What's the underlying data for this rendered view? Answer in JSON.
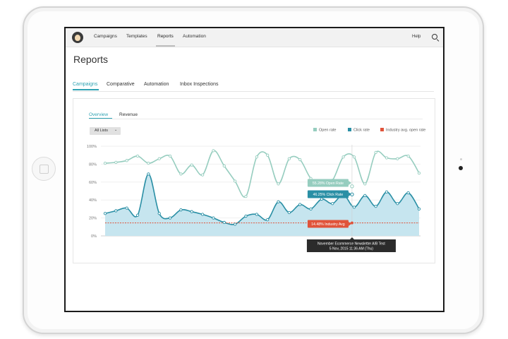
{
  "nav": {
    "items": [
      "Campaigns",
      "Templates",
      "Reports",
      "Automation"
    ],
    "active": "Reports",
    "help_label": "Help"
  },
  "page": {
    "title": "Reports"
  },
  "report_tabs": {
    "items": [
      "Campaigns",
      "Comparative",
      "Automation",
      "Inbox Inspections"
    ],
    "active": "Campaigns"
  },
  "sub_tabs": {
    "items": [
      "Overview",
      "Revenue"
    ],
    "active": "Overview"
  },
  "filter": {
    "label": "All Lists"
  },
  "legend": {
    "open_rate": "Open rate",
    "click_rate": "Click rate",
    "industry": "Industry avg. open rate"
  },
  "colors": {
    "open_rate": "#96cdbf",
    "click_rate": "#2a8fa5",
    "click_fill": "#c6e5ef",
    "industry": "#e0533a",
    "accent": "#30a3b3",
    "tooltip_bg": "#2b2b2b"
  },
  "chart_data": {
    "type": "line",
    "yticks": [
      "100%",
      "80%",
      "60%",
      "40%",
      "20%",
      "0%"
    ],
    "ylim": [
      0,
      100
    ],
    "series": [
      {
        "name": "Open rate",
        "values": [
          81,
          82,
          84,
          89,
          81,
          86,
          89,
          69,
          79,
          68,
          95,
          78,
          61,
          44,
          88,
          90,
          58,
          86,
          85,
          64,
          59,
          62,
          88,
          88,
          58,
          93,
          87,
          86,
          89,
          70
        ]
      },
      {
        "name": "Click rate",
        "values": [
          25,
          28,
          31,
          23,
          69,
          25,
          20,
          29,
          27,
          24,
          20,
          15,
          13,
          22,
          24,
          18,
          38,
          26,
          35,
          30,
          41,
          36,
          46,
          32,
          45,
          33,
          49,
          36,
          48,
          30
        ]
      },
      {
        "name": "Industry avg. open rate",
        "values": [
          14.48
        ]
      }
    ],
    "hover": {
      "open_label": "55.28% Open Rate",
      "click_label": "46.25% Click Rate",
      "industry_label": "14.48% Industry Avg",
      "campaign": "November Ecommerce Newsletter A/B Test",
      "date": "5 Nov, 2015 11:36 AM (Thu)"
    }
  }
}
